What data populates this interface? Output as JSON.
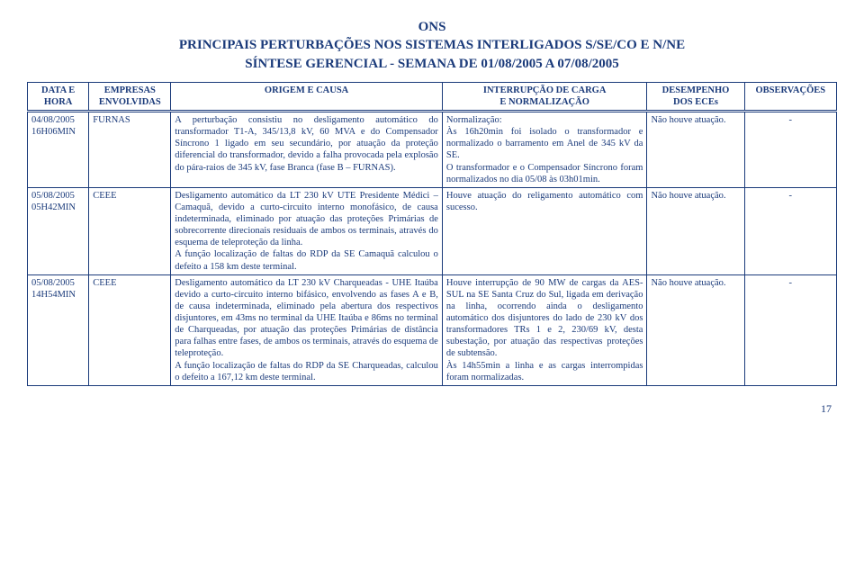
{
  "header": {
    "line1": "ONS",
    "line2": "PRINCIPAIS PERTURBAÇÕES NOS SISTEMAS INTERLIGADOS S/SE/CO E N/NE",
    "line3": "SÍNTESE GERENCIAL - SEMANA DE 01/08/2005 A 07/08/2005"
  },
  "columns": {
    "c0a": "DATA E",
    "c0b": "HORA",
    "c1a": "EMPRESAS",
    "c1b": "ENVOLVIDAS",
    "c2": "ORIGEM E CAUSA",
    "c3a": "INTERRUPÇÃO DE CARGA",
    "c3b": "E NORMALIZAÇÃO",
    "c4a": "DESEMPENHO",
    "c4b": "DOS ECEs",
    "c5": "OBSERVAÇÕES"
  },
  "rows": [
    {
      "date": "04/08/2005\n16H06MIN",
      "emp": "FURNAS",
      "origem": "A perturbação consistiu no desligamento automático do transformador T1-A, 345/13,8 kV, 60 MVA e do Compensador Síncrono 1 ligado em seu secundário, por atuação da proteção diferencial do transformador, devido a falha provocada pela explosão do pára-raios de 345 kV, fase Branca (fase B – FURNAS).",
      "int": "Normalização:\nÀs 16h20min foi isolado o transformador e normalizado o barramento em Anel de 345 kV da SE.\nO transformador e o Compensador Síncrono foram normalizados no dia 05/08 às 03h01min.",
      "des": "Não houve atuação.",
      "obs": "-"
    },
    {
      "date": "05/08/2005\n05H42MIN",
      "emp": "CEEE",
      "origem": "Desligamento automático da LT 230 kV UTE Presidente Médici – Camaquã, devido a curto-circuito interno monofásico, de causa indeterminada, eliminado por atuação das proteções Primárias de sobrecorrente direcionais residuais de ambos os terminais, através do esquema de teleproteção da linha.\nA função localização de faltas do RDP da SE Camaquã calculou o defeito a 158 km deste terminal.",
      "int": "Houve atuação do religamento automático com sucesso.",
      "des": "Não houve atuação.",
      "obs": "-"
    },
    {
      "date": "05/08/2005\n14H54MIN",
      "emp": "CEEE",
      "origem": "Desligamento automático da LT 230 kV Charqueadas - UHE Itaúba devido a curto-circuito interno bifásico, envolvendo as fases A e B, de causa indeterminada, eliminado pela abertura dos respectivos disjuntores, em 43ms no terminal da UHE Itaúba e 86ms no terminal de Charqueadas, por atuação das proteções Primárias de distância para falhas entre fases, de ambos os terminais, através do esquema de teleproteção.\nA função localização de faltas do RDP da SE Charqueadas, calculou o defeito a 167,12 km deste terminal.",
      "int": "Houve interrupção de 90 MW de cargas da AES-SUL na SE Santa Cruz do Sul, ligada em derivação na linha, ocorrendo ainda o desligamento automático dos disjuntores do lado de 230 kV dos transformadores TRs 1 e 2, 230/69 kV, desta subestação, por atuação das respectivas proteções de subtensão.\nÀs 14h55min a linha e as cargas interrompidas foram normalizadas.",
      "des": "Não houve atuação.",
      "obs": "-"
    }
  ],
  "page": "17"
}
